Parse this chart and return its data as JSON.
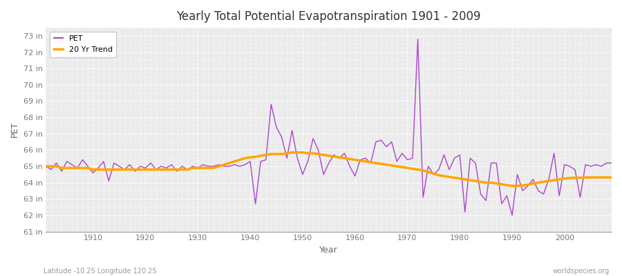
{
  "title": "Yearly Total Potential Evapotranspiration 1901 - 2009",
  "xlabel": "Year",
  "ylabel": "PET",
  "footer_left": "Latitude -10.25 Longitude 120.25",
  "footer_right": "worldspecies.org",
  "pet_color": "#AA44CC",
  "trend_color": "#FFA500",
  "fig_bg_color": "#FFFFFF",
  "plot_bg_color": "#EBEBEB",
  "ylim": [
    61,
    73.5
  ],
  "xlim": [
    1901,
    2009
  ],
  "yticks": [
    61,
    62,
    63,
    64,
    65,
    66,
    67,
    68,
    69,
    70,
    71,
    72,
    73
  ],
  "xticks": [
    1910,
    1920,
    1930,
    1940,
    1950,
    1960,
    1970,
    1980,
    1990,
    2000
  ],
  "years": [
    1901,
    1902,
    1903,
    1904,
    1905,
    1906,
    1907,
    1908,
    1909,
    1910,
    1911,
    1912,
    1913,
    1914,
    1915,
    1916,
    1917,
    1918,
    1919,
    1920,
    1921,
    1922,
    1923,
    1924,
    1925,
    1926,
    1927,
    1928,
    1929,
    1930,
    1931,
    1932,
    1933,
    1934,
    1935,
    1936,
    1937,
    1938,
    1939,
    1940,
    1941,
    1942,
    1943,
    1944,
    1945,
    1946,
    1947,
    1948,
    1949,
    1950,
    1951,
    1952,
    1953,
    1954,
    1955,
    1956,
    1957,
    1958,
    1959,
    1960,
    1961,
    1962,
    1963,
    1964,
    1965,
    1966,
    1967,
    1968,
    1969,
    1970,
    1971,
    1972,
    1973,
    1974,
    1975,
    1976,
    1977,
    1978,
    1979,
    1980,
    1981,
    1982,
    1983,
    1984,
    1985,
    1986,
    1987,
    1988,
    1989,
    1990,
    1991,
    1992,
    1993,
    1994,
    1995,
    1996,
    1997,
    1998,
    1999,
    2000,
    2001,
    2002,
    2003,
    2004,
    2005,
    2006,
    2007,
    2008,
    2009
  ],
  "pet_values": [
    65.0,
    64.8,
    65.2,
    64.7,
    65.3,
    65.1,
    64.9,
    65.4,
    65.0,
    64.6,
    64.9,
    65.3,
    64.1,
    65.2,
    65.0,
    64.8,
    65.1,
    64.7,
    65.0,
    64.9,
    65.2,
    64.8,
    65.0,
    64.9,
    65.1,
    64.7,
    65.0,
    64.8,
    65.0,
    64.9,
    65.1,
    65.0,
    65.0,
    65.1,
    65.0,
    65.0,
    65.1,
    65.0,
    65.1,
    65.3,
    62.7,
    65.3,
    65.4,
    68.8,
    67.4,
    66.8,
    65.5,
    67.2,
    65.5,
    64.5,
    65.3,
    66.7,
    66.0,
    64.5,
    65.2,
    65.7,
    65.5,
    65.8,
    65.0,
    64.4,
    65.4,
    65.5,
    65.2,
    66.5,
    66.6,
    66.2,
    66.5,
    65.3,
    65.8,
    65.4,
    65.5,
    72.8,
    63.1,
    65.0,
    64.5,
    64.8,
    65.7,
    64.8,
    65.5,
    65.7,
    62.2,
    65.5,
    65.2,
    63.3,
    62.9,
    65.2,
    65.2,
    62.7,
    63.2,
    62.0,
    64.5,
    63.5,
    63.8,
    64.2,
    63.5,
    63.3,
    64.2,
    65.8,
    63.2,
    65.1,
    65.0,
    64.8,
    63.1,
    65.1,
    65.0,
    65.1,
    65.0,
    65.2,
    65.2
  ],
  "trend_values": [
    65.0,
    65.0,
    65.0,
    64.9,
    64.9,
    64.9,
    64.9,
    64.9,
    64.9,
    64.8,
    64.8,
    64.8,
    64.8,
    64.8,
    64.8,
    64.8,
    64.8,
    64.8,
    64.8,
    64.8,
    64.8,
    64.8,
    64.8,
    64.8,
    64.8,
    64.8,
    64.8,
    64.8,
    64.9,
    64.9,
    64.9,
    64.9,
    64.9,
    65.0,
    65.1,
    65.2,
    65.3,
    65.4,
    65.5,
    65.55,
    65.58,
    65.65,
    65.7,
    65.75,
    65.75,
    65.75,
    65.8,
    65.85,
    65.85,
    65.85,
    65.8,
    65.8,
    65.75,
    65.7,
    65.65,
    65.6,
    65.55,
    65.5,
    65.45,
    65.4,
    65.35,
    65.3,
    65.25,
    65.2,
    65.15,
    65.1,
    65.05,
    65.0,
    64.95,
    64.9,
    64.85,
    64.8,
    64.75,
    64.65,
    64.55,
    64.45,
    64.4,
    64.35,
    64.3,
    64.25,
    64.2,
    64.15,
    64.1,
    64.05,
    64.0,
    64.0,
    63.95,
    63.9,
    63.85,
    63.8,
    63.8,
    63.82,
    63.88,
    63.95,
    64.0,
    64.05,
    64.1,
    64.15,
    64.2,
    64.25,
    64.28,
    64.3,
    64.3,
    64.32,
    64.32,
    64.32,
    64.32,
    64.32,
    64.32
  ]
}
